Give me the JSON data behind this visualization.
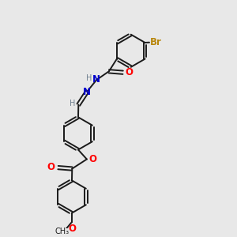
{
  "background_color": "#e8e8e8",
  "bond_color": "#1a1a1a",
  "atom_colors": {
    "O": "#ff0000",
    "N": "#0000cc",
    "Br": "#b8860b",
    "C": "#1a1a1a",
    "H": "#708090"
  },
  "font_size_atom": 8.5,
  "font_size_small": 7.0,
  "lw": 1.4,
  "ring_r": 0.72
}
